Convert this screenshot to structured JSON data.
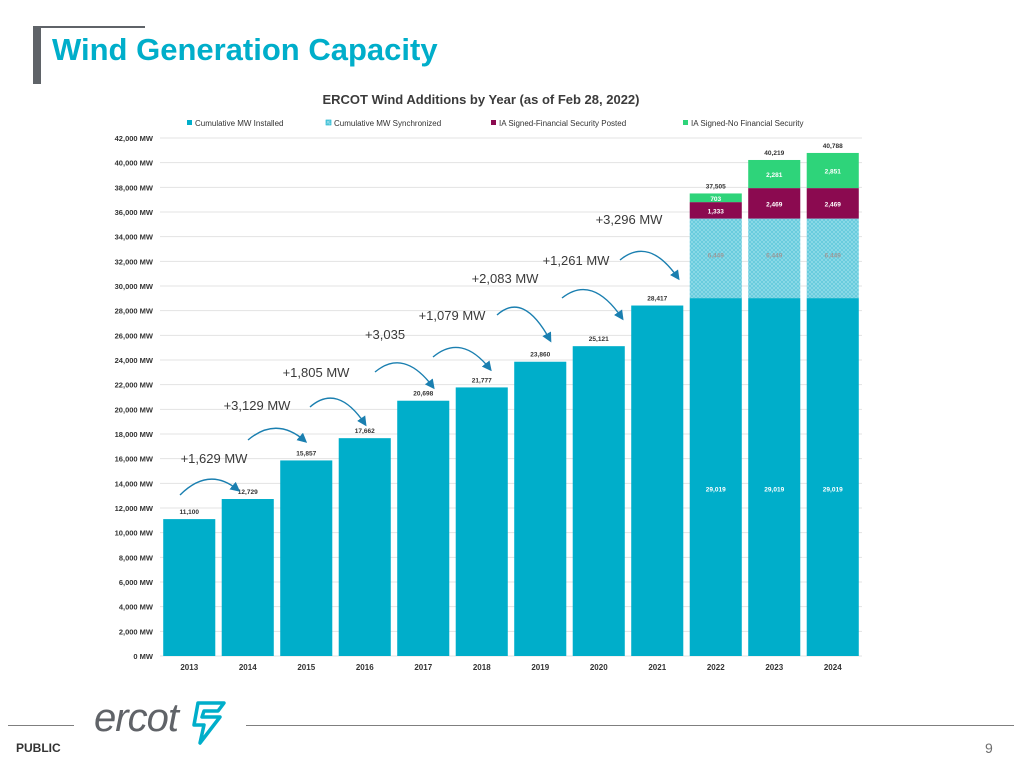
{
  "page": {
    "title": "Wind Generation Capacity",
    "classification": "PUBLIC",
    "page_number": "9",
    "logo_text": "ercot"
  },
  "colors": {
    "title": "#00aeca",
    "installed": "#00aeca",
    "synchronized": "#8fdbe8",
    "security_posted": "#8b0a50",
    "no_security": "#2ed47a",
    "grid": "#e3e3e3"
  },
  "chart_data": {
    "type": "bar",
    "stacked": true,
    "title": "ERCOT Wind Additions by Year (as of Feb 28, 2022)",
    "categories": [
      "2013",
      "2014",
      "2015",
      "2016",
      "2017",
      "2018",
      "2019",
      "2020",
      "2021",
      "2022",
      "2023",
      "2024"
    ],
    "ylim": [
      0,
      42000
    ],
    "ytick_step": 2000,
    "ytick_suffix": " MW",
    "grid": true,
    "legend_position": "top",
    "series": [
      {
        "name": "Cumulative MW Installed",
        "key": "installed",
        "values": [
          11100,
          12729,
          15857,
          17662,
          20698,
          21777,
          23860,
          25121,
          28417,
          29019,
          29019,
          29019
        ]
      },
      {
        "name": "Cumulative MW Synchronized",
        "key": "synchronized",
        "values": [
          0,
          0,
          0,
          0,
          0,
          0,
          0,
          0,
          0,
          6449,
          6449,
          6449
        ]
      },
      {
        "name": "IA Signed-Financial Security Posted",
        "key": "security_posted",
        "values": [
          0,
          0,
          0,
          0,
          0,
          0,
          0,
          0,
          0,
          1333,
          2469,
          2469
        ]
      },
      {
        "name": "IA Signed-No Financial Security",
        "key": "no_security",
        "values": [
          0,
          0,
          0,
          0,
          0,
          0,
          0,
          0,
          0,
          703,
          2281,
          2851
        ]
      }
    ],
    "value_labels": {
      "installed": [
        "11,100",
        "12,729",
        "15,857",
        "17,662",
        "20,698",
        "21,777",
        "23,860",
        "25,121",
        "28,417",
        "29,019",
        "29,019",
        "29,019"
      ],
      "synchronized": [
        "",
        "",
        "",
        "",
        "",
        "",
        "",
        "",
        "",
        "6,449",
        "6,449",
        "6,449"
      ],
      "security_posted": [
        "",
        "",
        "",
        "",
        "",
        "",
        "",
        "",
        "",
        "1,333",
        "2,469",
        "2,469"
      ],
      "no_security": [
        "",
        "",
        "",
        "",
        "",
        "",
        "",
        "",
        "",
        "703",
        "2,281",
        "2,851"
      ]
    },
    "totals": [
      "",
      "",
      "",
      "",
      "",
      "",
      "",
      "",
      "",
      "37,505",
      "40,219",
      "40,788"
    ],
    "annotations": [
      {
        "text": "+1,629 MW",
        "from_year": "2013",
        "to_year": "2014"
      },
      {
        "text": "+3,129 MW",
        "from_year": "2014",
        "to_year": "2015"
      },
      {
        "text": "+1,805 MW",
        "from_year": "2015",
        "to_year": "2016"
      },
      {
        "text": "+3,035",
        "from_year": "2016",
        "to_year": "2017"
      },
      {
        "text": "+1,079 MW",
        "from_year": "2017",
        "to_year": "2018"
      },
      {
        "text": "+2,083 MW",
        "from_year": "2018",
        "to_year": "2019"
      },
      {
        "text": "+1,261 MW",
        "from_year": "2019",
        "to_year": "2020"
      },
      {
        "text": "+3,296 MW",
        "from_year": "2020",
        "to_year": "2021"
      }
    ]
  }
}
